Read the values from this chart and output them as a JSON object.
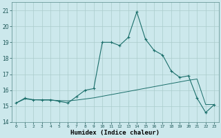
{
  "xlabel": "Humidex (Indice chaleur)",
  "ylabel": "",
  "background_color": "#cce8ec",
  "grid_color": "#aacccc",
  "line_color": "#1a6e6a",
  "xlim": [
    -0.5,
    23.5
  ],
  "ylim": [
    14,
    21.5
  ],
  "yticks": [
    14,
    15,
    16,
    17,
    18,
    19,
    20,
    21
  ],
  "xticks": [
    0,
    1,
    2,
    3,
    4,
    5,
    6,
    7,
    8,
    9,
    10,
    11,
    12,
    13,
    14,
    15,
    16,
    17,
    18,
    19,
    20,
    21,
    22,
    23
  ],
  "line1_x": [
    0,
    1,
    2,
    3,
    4,
    5,
    6,
    7,
    8,
    9,
    10,
    11,
    12,
    13,
    14,
    15,
    16,
    17,
    18,
    19,
    20,
    21,
    22,
    23
  ],
  "line1_y": [
    15.2,
    15.5,
    15.4,
    15.4,
    15.4,
    15.3,
    15.2,
    15.6,
    16.0,
    16.1,
    19.0,
    19.0,
    18.8,
    19.3,
    20.9,
    19.2,
    18.5,
    18.2,
    17.2,
    16.8,
    16.9,
    15.5,
    14.6,
    15.1
  ],
  "line2_x": [
    0,
    1,
    2,
    3,
    4,
    5,
    6,
    7,
    8,
    9,
    10,
    11,
    12,
    13,
    14,
    15,
    16,
    17,
    18,
    19,
    20,
    21,
    22,
    23
  ],
  "line2_y": [
    15.2,
    15.45,
    15.4,
    15.38,
    15.38,
    15.35,
    15.33,
    15.38,
    15.45,
    15.52,
    15.62,
    15.72,
    15.82,
    15.92,
    16.02,
    16.12,
    16.22,
    16.32,
    16.42,
    16.52,
    16.62,
    16.7,
    15.1,
    15.1
  ],
  "figsize": [
    3.2,
    2.0
  ],
  "dpi": 100
}
